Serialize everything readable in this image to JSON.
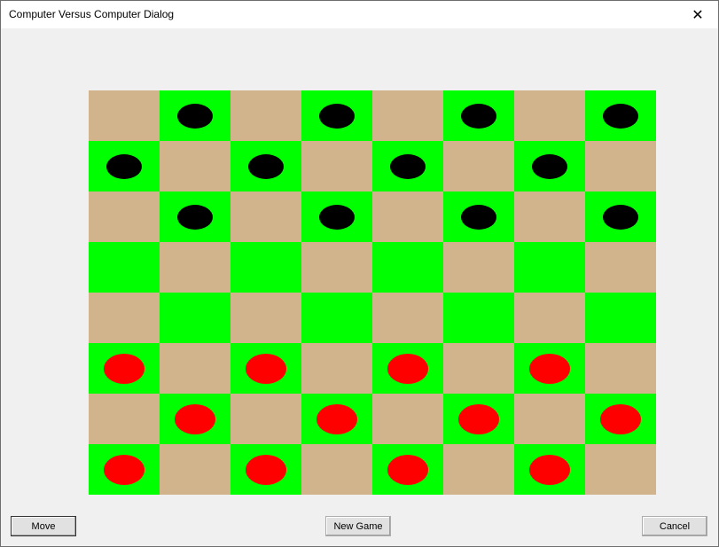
{
  "window": {
    "title": "Computer Versus Computer Dialog",
    "close_icon": "close-icon"
  },
  "board": {
    "colors": {
      "light": "#d2b48c",
      "dark": "#00ff00",
      "black_piece": "#000000",
      "red_piece": "#ff0000"
    },
    "rows": [
      ".b.b.b.b",
      "b.b.b.b.",
      ".b.b.b.b",
      "g.g.g.g.",
      ".g.g.g.g",
      "r.r.r.r.",
      ".r.r.r.r",
      "r.r.r.r."
    ]
  },
  "buttons": {
    "move": "Move",
    "new_game": "New Game",
    "cancel": "Cancel"
  }
}
